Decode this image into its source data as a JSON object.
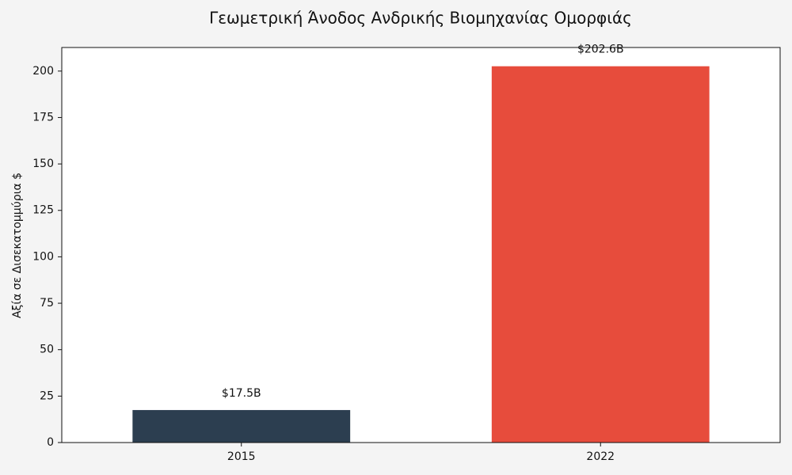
{
  "chart_data": {
    "type": "bar",
    "title": "Γεωμετρική Άνοδος Ανδρικής Βιομηχανίας Ομορφιάς",
    "y_label": "Αξία σε Δισεκατομμύρια $",
    "categories": [
      "2015",
      "2022"
    ],
    "values": [
      17.5,
      202.6
    ],
    "value_labels": [
      "$17.5B",
      "$202.6B"
    ],
    "colors": [
      "#2c3e50",
      "#e74c3c"
    ],
    "ylim": [
      0,
      212.7
    ],
    "yticks": [
      0,
      25,
      50,
      75,
      100,
      125,
      150,
      175,
      200
    ],
    "grid": false
  }
}
